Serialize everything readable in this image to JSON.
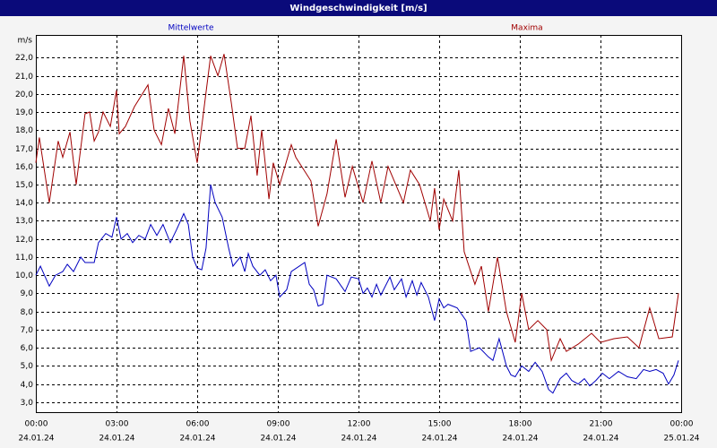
{
  "chart_data": {
    "type": "line",
    "title": "Windgeschwindigkeit [m/s]",
    "y_label": "m/s",
    "xlim": [
      0,
      24
    ],
    "ylim": [
      2.45,
      23.25
    ],
    "grid": true,
    "xticks": [
      {
        "value": 0,
        "label": "00:00"
      },
      {
        "value": 3,
        "label": "03:00"
      },
      {
        "value": 6,
        "label": "06:00"
      },
      {
        "value": 9,
        "label": "09:00"
      },
      {
        "value": 12,
        "label": "12:00"
      },
      {
        "value": 15,
        "label": "15:00"
      },
      {
        "value": 18,
        "label": "18:00"
      },
      {
        "value": 21,
        "label": "21:00"
      },
      {
        "value": 24,
        "label": "00:00"
      }
    ],
    "xtick_dates": [
      "24.01.24",
      "24.01.24",
      "24.01.24",
      "24.01.24",
      "24.01.24",
      "24.01.24",
      "24.01.24",
      "24.01.24",
      "25.01.24"
    ],
    "yticks": [
      {
        "value": 3,
        "label": "3,0"
      },
      {
        "value": 4,
        "label": "4,0"
      },
      {
        "value": 5,
        "label": "5,0"
      },
      {
        "value": 6,
        "label": "6,0"
      },
      {
        "value": 7,
        "label": "7,0"
      },
      {
        "value": 8,
        "label": "8,0"
      },
      {
        "value": 9,
        "label": "9,0"
      },
      {
        "value": 10,
        "label": "10,0"
      },
      {
        "value": 11,
        "label": "11,0"
      },
      {
        "value": 12,
        "label": "12,0"
      },
      {
        "value": 13,
        "label": "13,0"
      },
      {
        "value": 14,
        "label": "14,0"
      },
      {
        "value": 15,
        "label": "15,0"
      },
      {
        "value": 16,
        "label": "16,0"
      },
      {
        "value": 17,
        "label": "17,0"
      },
      {
        "value": 18,
        "label": "18,0"
      },
      {
        "value": 19,
        "label": "19,0"
      },
      {
        "value": 20,
        "label": "20,0"
      },
      {
        "value": 21,
        "label": "21,0"
      },
      {
        "value": 22,
        "label": "22,0"
      }
    ],
    "series": [
      {
        "name": "Mittelwerte",
        "color": "#0000c0",
        "x": [
          0,
          0.17,
          0.5,
          0.73,
          1,
          1.17,
          1.4,
          1.67,
          1.83,
          2.17,
          2.33,
          2.6,
          2.83,
          3,
          3.17,
          3.4,
          3.6,
          3.83,
          4.07,
          4.27,
          4.5,
          4.73,
          5,
          5.23,
          5.5,
          5.67,
          5.83,
          6,
          6.17,
          6.33,
          6.5,
          6.67,
          6.93,
          7.17,
          7.33,
          7.6,
          7.77,
          7.9,
          8.07,
          8.33,
          8.53,
          8.73,
          8.93,
          9.07,
          9.33,
          9.5,
          10,
          10.17,
          10.33,
          10.5,
          10.67,
          10.83,
          11.17,
          11.5,
          11.73,
          12,
          12.17,
          12.33,
          12.5,
          12.67,
          12.83,
          13.17,
          13.33,
          13.6,
          13.77,
          14,
          14.17,
          14.33,
          14.6,
          14.83,
          15,
          15.17,
          15.33,
          15.67,
          16,
          16.17,
          16.5,
          16.83,
          17,
          17.23,
          17.5,
          17.67,
          17.83,
          18.07,
          18.33,
          18.57,
          18.83,
          19.07,
          19.23,
          19.5,
          19.73,
          19.93,
          20.17,
          20.4,
          20.6,
          20.83,
          21.07,
          21.33,
          21.67,
          22,
          22.33,
          22.6,
          22.83,
          23.07,
          23.33,
          23.53,
          23.73,
          23.9
        ],
        "values": [
          10.0,
          10.5,
          9.4,
          10.0,
          10.2,
          10.6,
          10.2,
          11.0,
          10.7,
          10.7,
          11.8,
          12.3,
          12.1,
          13.2,
          12.0,
          12.3,
          11.8,
          12.2,
          12.0,
          12.8,
          12.2,
          12.8,
          11.8,
          12.5,
          13.4,
          12.8,
          11.0,
          10.4,
          10.3,
          11.5,
          15.0,
          14.0,
          13.2,
          11.5,
          10.5,
          11.0,
          10.2,
          11.2,
          10.5,
          10.0,
          10.3,
          9.7,
          10.0,
          8.8,
          9.2,
          10.2,
          10.7,
          9.5,
          9.2,
          8.3,
          8.4,
          10.0,
          9.8,
          9.1,
          9.9,
          9.8,
          9.0,
          9.3,
          8.8,
          9.5,
          8.9,
          9.9,
          9.2,
          9.8,
          8.8,
          9.7,
          8.9,
          9.6,
          8.8,
          7.5,
          8.7,
          8.2,
          8.4,
          8.2,
          7.5,
          5.8,
          6.0,
          5.5,
          5.3,
          6.5,
          5.0,
          4.5,
          4.4,
          5.0,
          4.7,
          5.2,
          4.7,
          3.7,
          3.5,
          4.3,
          4.6,
          4.2,
          4.0,
          4.3,
          3.9,
          4.2,
          4.6,
          4.3,
          4.7,
          4.4,
          4.3,
          4.8,
          4.7,
          4.8,
          4.6,
          4.0,
          4.5,
          5.3
        ]
      },
      {
        "name": "Maxima",
        "color": "#a00000",
        "x": [
          0,
          0.13,
          0.5,
          0.83,
          1,
          1.27,
          1.5,
          1.83,
          2,
          2.17,
          2.33,
          2.5,
          2.77,
          3,
          3.1,
          3.33,
          3.67,
          4.17,
          4.4,
          4.67,
          4.93,
          5.17,
          5.5,
          5.73,
          6,
          6.5,
          6.77,
          7,
          7.27,
          7.5,
          7.77,
          8,
          8.23,
          8.4,
          8.67,
          8.83,
          9.07,
          9.5,
          9.67,
          10.23,
          10.5,
          10.83,
          11.17,
          11.5,
          11.77,
          12.17,
          12.5,
          12.83,
          13.1,
          13.67,
          13.93,
          14.27,
          14.67,
          14.83,
          15,
          15.17,
          15.5,
          15.73,
          15.93,
          16.33,
          16.57,
          16.83,
          17.17,
          17.5,
          17.83,
          18.07,
          18.33,
          18.67,
          19,
          19.17,
          19.5,
          19.73,
          20.17,
          20.67,
          21,
          21.5,
          22,
          22.43,
          22.83,
          23.17,
          23.67,
          23.9
        ],
        "values": [
          16.2,
          17.6,
          14.0,
          17.4,
          16.5,
          17.9,
          15.0,
          18.9,
          19.0,
          17.4,
          17.9,
          19.0,
          18.2,
          20.2,
          17.8,
          18.2,
          19.3,
          20.5,
          18.0,
          17.2,
          19.2,
          17.8,
          22.1,
          18.5,
          16.2,
          22.1,
          21.0,
          22.2,
          19.5,
          17.0,
          17.0,
          18.8,
          15.5,
          18.0,
          14.2,
          16.2,
          15.0,
          17.2,
          16.5,
          15.2,
          12.7,
          14.5,
          17.5,
          14.3,
          16.0,
          14.0,
          16.3,
          14.0,
          16.0,
          14.0,
          15.8,
          15.0,
          13.0,
          14.8,
          12.5,
          14.2,
          13.0,
          15.8,
          11.3,
          9.5,
          10.5,
          8.0,
          11.0,
          8.0,
          6.3,
          9.0,
          7.0,
          7.5,
          7.0,
          5.3,
          6.5,
          5.8,
          6.2,
          6.8,
          6.3,
          6.5,
          6.6,
          6.0,
          8.2,
          6.5,
          6.6,
          9.0
        ]
      }
    ]
  }
}
